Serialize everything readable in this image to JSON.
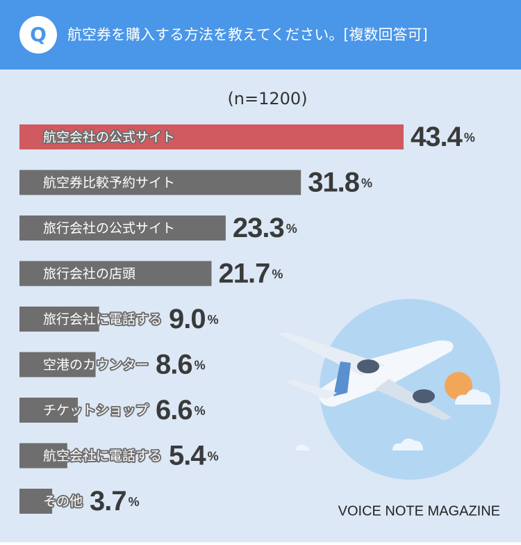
{
  "header": {
    "badge": "Q",
    "question": "航空券を購入する方法を教えてください。[複数回答可]"
  },
  "chart_data": {
    "type": "bar",
    "orientation": "horizontal",
    "subtitle": "(n=1200)",
    "categories": [
      "航空会社の公式サイト",
      "航空券比較予約サイト",
      "旅行会社の公式サイト",
      "旅行会社の店頭",
      "旅行会社に電話する",
      "空港のカウンター",
      "チケットショップ",
      "航空会社に電話する",
      "その他"
    ],
    "values": [
      43.4,
      31.8,
      23.3,
      21.7,
      9.0,
      8.6,
      6.6,
      5.4,
      3.7
    ],
    "value_labels": [
      "43.4%",
      "31.8%",
      "23.3%",
      "21.7%",
      "9.0%",
      "8.6%",
      "6.6%",
      "5.4%",
      "3.7%"
    ],
    "colors": [
      "#d05a5f",
      "#6e6e6e",
      "#6e6e6e",
      "#6e6e6e",
      "#6e6e6e",
      "#6e6e6e",
      "#6e6e6e",
      "#6e6e6e",
      "#6e6e6e"
    ],
    "source": "VOICE NOTE MAGAZINE"
  }
}
